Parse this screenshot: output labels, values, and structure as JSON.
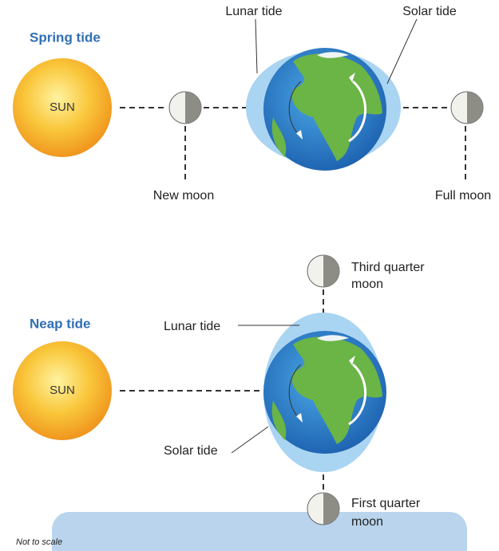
{
  "spring": {
    "title": "Spring tide",
    "sun": "SUN",
    "lunar_tide": "Lunar tide",
    "solar_tide": "Solar tide",
    "new_moon": "New moon",
    "full_moon": "Full moon"
  },
  "neap": {
    "title": "Neap tide",
    "sun": "SUN",
    "lunar_tide": "Lunar tide",
    "solar_tide": "Solar tide",
    "third_quarter": [
      "Third quarter",
      "moon"
    ],
    "first_quarter": [
      "First quarter",
      "moon"
    ]
  },
  "note": "Not to scale"
}
